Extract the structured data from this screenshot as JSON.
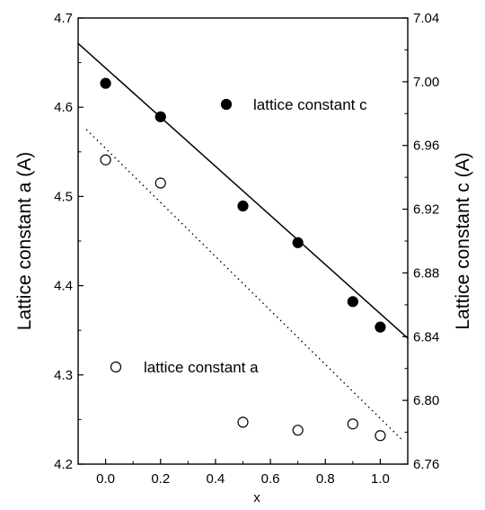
{
  "chart_data": {
    "type": "scatter",
    "xlabel": "x",
    "ylabel_left": "Lattice constant a (A)",
    "ylabel_right": "Lattice constant c (A)",
    "xlim": [
      -0.1,
      1.1
    ],
    "ylim_left": [
      4.2,
      4.7
    ],
    "ylim_right": [
      6.76,
      7.04
    ],
    "x_ticks": [
      "0.0",
      "0.2",
      "0.4",
      "0.6",
      "0.8",
      "1.0"
    ],
    "y_left_ticks": [
      "4.2",
      "4.3",
      "4.4",
      "4.5",
      "4.6",
      "4.7"
    ],
    "y_right_ticks": [
      "6.76",
      "6.80",
      "6.84",
      "6.88",
      "6.92",
      "6.96",
      "7.00",
      "7.04"
    ],
    "legend_position": "inside-plot",
    "series": [
      {
        "name": "lattice constant c",
        "axis": "right",
        "marker": "filled-circle",
        "x": [
          0.0,
          0.2,
          0.5,
          0.7,
          0.9,
          1.0
        ],
        "y": [
          6.999,
          6.978,
          6.922,
          6.899,
          6.862,
          6.846
        ],
        "fit_line": {
          "style": "solid",
          "x": [
            -0.1,
            1.1
          ],
          "y": [
            7.024,
            6.839
          ]
        }
      },
      {
        "name": "lattice constant a",
        "axis": "left",
        "marker": "open-circle",
        "x": [
          0.0,
          0.2,
          0.5,
          0.7,
          0.9,
          1.0
        ],
        "y": [
          4.541,
          4.515,
          4.247,
          4.238,
          4.245,
          4.232
        ],
        "fit_line": {
          "style": "dotted",
          "x": [
            -0.07,
            1.08
          ],
          "y": [
            4.575,
            4.227
          ]
        }
      }
    ]
  }
}
